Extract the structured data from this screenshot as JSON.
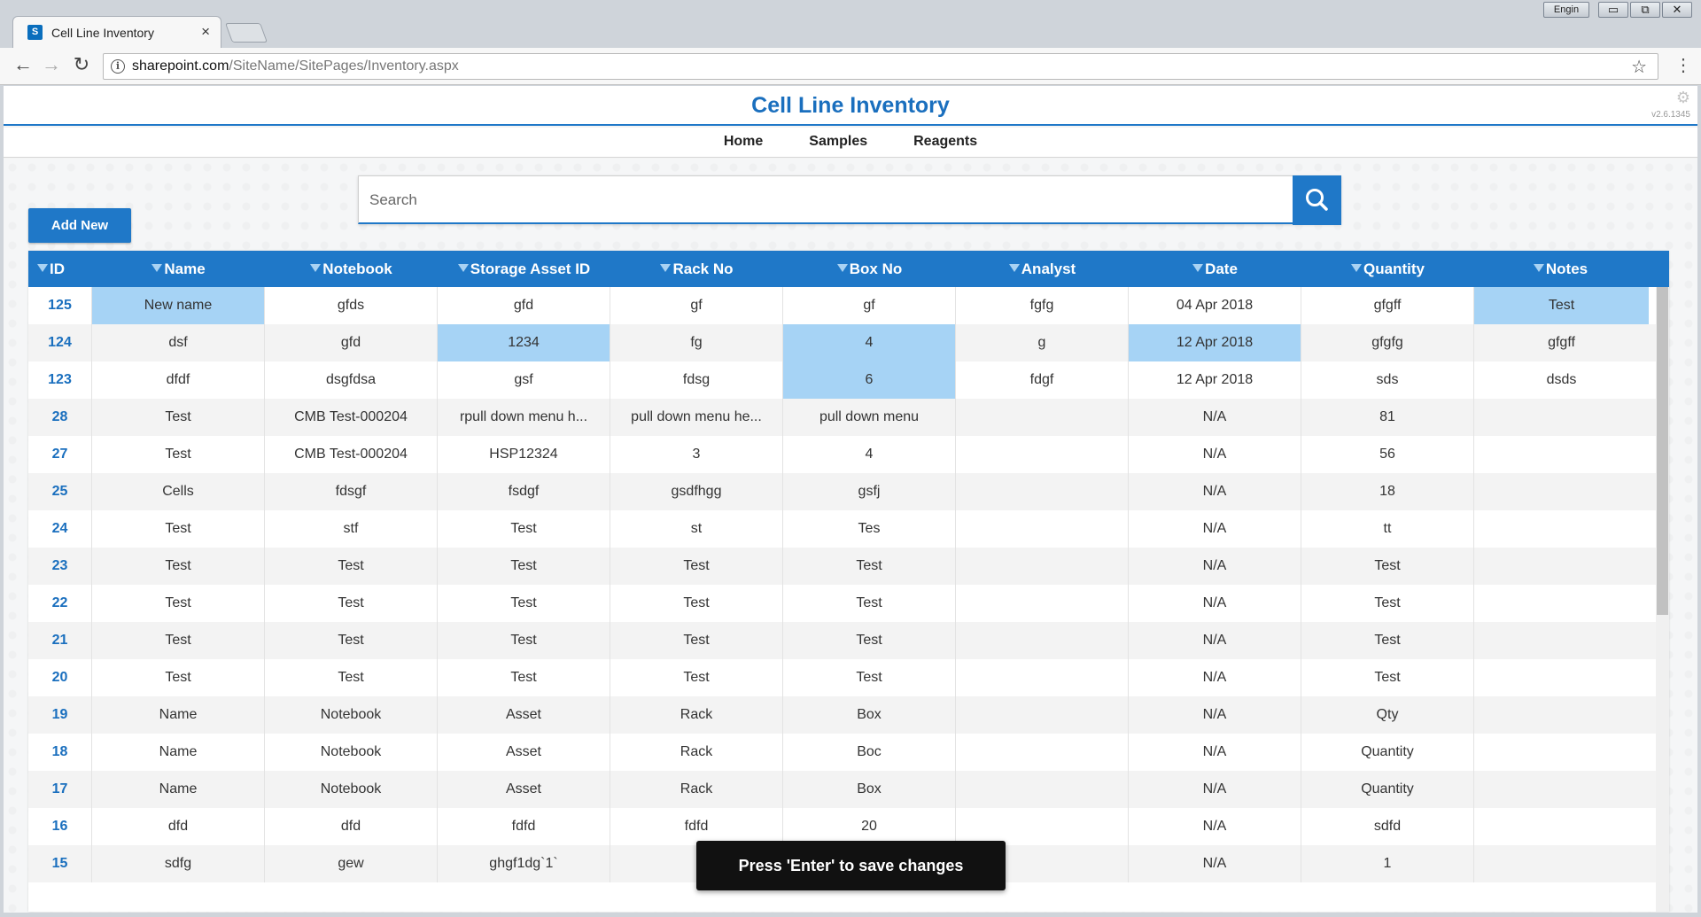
{
  "os": {
    "user_label": "Engin",
    "minimize": "▭",
    "restore": "⧉",
    "close": "✕"
  },
  "browser": {
    "tab_title": "Cell Line Inventory",
    "tab_favicon": "S",
    "tab_close": "×",
    "url_host": "sharepoint.com",
    "url_path": "/SiteName/SitePages/Inventory.aspx",
    "back": "←",
    "forward": "→",
    "reload": "↻",
    "star": "☆",
    "menu": "⋮",
    "info": "i"
  },
  "page": {
    "title": "Cell Line Inventory",
    "version": "v2.6.1345",
    "gear": "⚙",
    "nav": [
      "Home",
      "Samples",
      "Reagents"
    ],
    "search_placeholder": "Search",
    "add_new_label": "Add New",
    "toast": "Press 'Enter' to save changes",
    "accent_color": "#1f78c8",
    "selected_cell_color": "#a6d3f5"
  },
  "grid": {
    "columns": [
      "ID",
      "Name",
      "Notebook",
      "Storage Asset ID",
      "Rack No",
      "Box No",
      "Analyst",
      "Date",
      "Quantity",
      "Notes"
    ],
    "rows": [
      {
        "cells": [
          "125",
          "New name",
          "gfds",
          "gfd",
          "gf",
          "gf",
          "fgfg",
          "04 Apr 2018",
          "gfgff",
          "Test"
        ],
        "selected": [
          1,
          9
        ]
      },
      {
        "cells": [
          "124",
          "dsf",
          "gfd",
          "1234",
          "fg",
          "4",
          "g",
          "12 Apr 2018",
          "gfgfg",
          "gfgff"
        ],
        "selected": [
          3,
          5,
          7
        ]
      },
      {
        "cells": [
          "123",
          "dfdf",
          "dsgfdsa",
          "gsf",
          "fdsg",
          "6",
          "fdgf",
          "12 Apr 2018",
          "sds",
          "dsds"
        ],
        "selected": [
          5
        ]
      },
      {
        "cells": [
          "28",
          "Test",
          "CMB Test-000204",
          "rpull down menu h...",
          "pull down menu he...",
          "pull down menu",
          "",
          "N/A",
          "81",
          ""
        ],
        "selected": []
      },
      {
        "cells": [
          "27",
          "Test",
          "CMB Test-000204",
          "HSP12324",
          "3",
          "4",
          "",
          "N/A",
          "56",
          ""
        ],
        "selected": []
      },
      {
        "cells": [
          "25",
          "Cells",
          "fdsgf",
          "fsdgf",
          "gsdfhgg",
          "gsfj",
          "",
          "N/A",
          "18",
          ""
        ],
        "selected": []
      },
      {
        "cells": [
          "24",
          "Test",
          "stf",
          "Test",
          "st",
          "Tes",
          "",
          "N/A",
          "tt",
          ""
        ],
        "selected": []
      },
      {
        "cells": [
          "23",
          "Test",
          "Test",
          "Test",
          "Test",
          "Test",
          "",
          "N/A",
          "Test",
          ""
        ],
        "selected": []
      },
      {
        "cells": [
          "22",
          "Test",
          "Test",
          "Test",
          "Test",
          "Test",
          "",
          "N/A",
          "Test",
          ""
        ],
        "selected": []
      },
      {
        "cells": [
          "21",
          "Test",
          "Test",
          "Test",
          "Test",
          "Test",
          "",
          "N/A",
          "Test",
          ""
        ],
        "selected": []
      },
      {
        "cells": [
          "20",
          "Test",
          "Test",
          "Test",
          "Test",
          "Test",
          "",
          "N/A",
          "Test",
          ""
        ],
        "selected": []
      },
      {
        "cells": [
          "19",
          "Name",
          "Notebook",
          "Asset",
          "Rack",
          "Box",
          "",
          "N/A",
          "Qty",
          ""
        ],
        "selected": []
      },
      {
        "cells": [
          "18",
          "Name",
          "Notebook",
          "Asset",
          "Rack",
          "Boc",
          "",
          "N/A",
          "Quantity",
          ""
        ],
        "selected": []
      },
      {
        "cells": [
          "17",
          "Name",
          "Notebook",
          "Asset",
          "Rack",
          "Box",
          "",
          "N/A",
          "Quantity",
          ""
        ],
        "selected": []
      },
      {
        "cells": [
          "16",
          "dfd",
          "dfd",
          "fdfd",
          "fdfd",
          "20",
          "",
          "N/A",
          "sdfd",
          ""
        ],
        "selected": []
      },
      {
        "cells": [
          "15",
          "sdfg",
          "gew",
          "ghgf1dg`1`",
          "",
          "",
          "",
          "N/A",
          "1",
          ""
        ],
        "selected": []
      }
    ]
  }
}
